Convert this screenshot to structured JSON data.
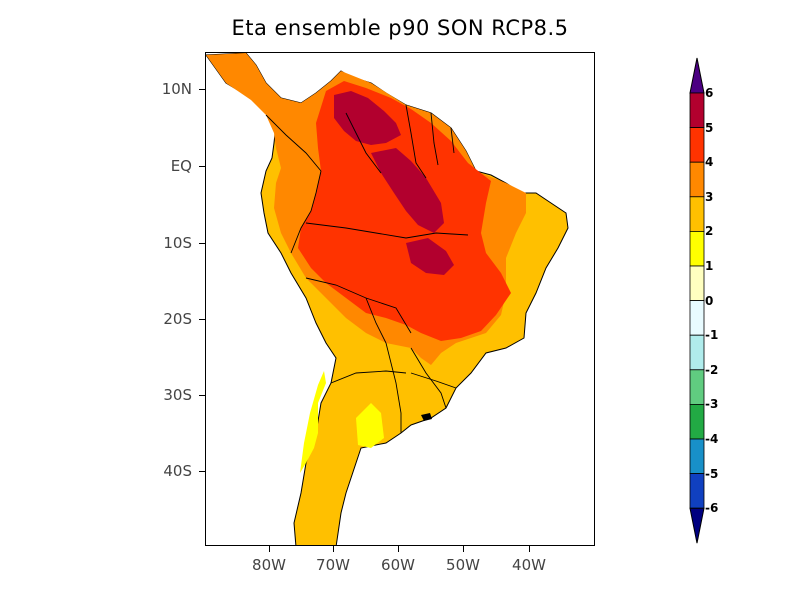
{
  "title": "Eta ensemble p90 SON RCP8.5",
  "lat_labels": [
    "10N",
    "EQ",
    "10S",
    "20S",
    "30S",
    "40S"
  ],
  "lon_labels": [
    "80W",
    "70W",
    "60W",
    "50W",
    "40W"
  ],
  "colorbar": {
    "labels": [
      "6",
      "5",
      "4",
      "3",
      "2",
      "1",
      "0",
      "-1",
      "-2",
      "-3",
      "-4",
      "-5",
      "-6"
    ],
    "colors": [
      "#4b0082",
      "#b2002e",
      "#ff3300",
      "#ff8800",
      "#ffc000",
      "#ffff00",
      "#ffffc0",
      "#e8fbff",
      "#b0ecec",
      "#60cc80",
      "#22aa44",
      "#1890c8",
      "#1040c0",
      "#000080"
    ]
  },
  "map": {
    "region": "South America",
    "palette": {
      "1_to_2": "#ffff00",
      "2_to_3": "#ffc000",
      "3_to_4": "#ff8800",
      "4_to_5": "#ff3300",
      "5_to_6": "#b2002e"
    }
  }
}
